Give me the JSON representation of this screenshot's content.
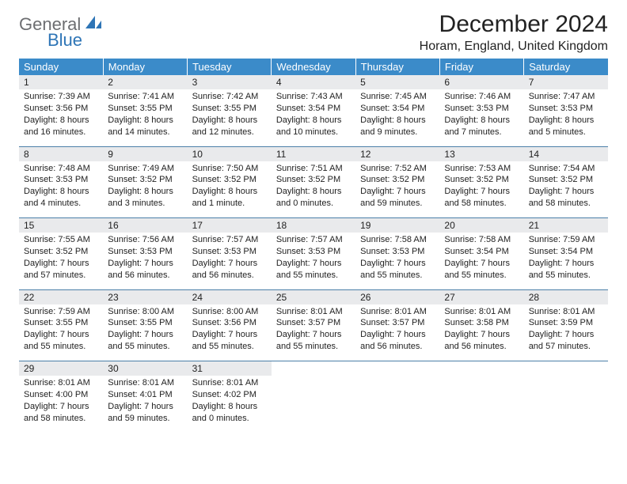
{
  "logo": {
    "word1": "General",
    "word2": "Blue",
    "sail_color": "#2e75b6",
    "word1_color": "#6d6e71"
  },
  "title": "December 2024",
  "location": "Horam, England, United Kingdom",
  "header_bg": "#3b8bc9",
  "daynum_bg": "#e9eaec",
  "rule_color": "#4b7fa8",
  "weekdays": [
    "Sunday",
    "Monday",
    "Tuesday",
    "Wednesday",
    "Thursday",
    "Friday",
    "Saturday"
  ],
  "weeks": [
    {
      "days": [
        {
          "n": "1",
          "sunrise": "7:39 AM",
          "sunset": "3:56 PM",
          "daylight": "8 hours and 16 minutes."
        },
        {
          "n": "2",
          "sunrise": "7:41 AM",
          "sunset": "3:55 PM",
          "daylight": "8 hours and 14 minutes."
        },
        {
          "n": "3",
          "sunrise": "7:42 AM",
          "sunset": "3:55 PM",
          "daylight": "8 hours and 12 minutes."
        },
        {
          "n": "4",
          "sunrise": "7:43 AM",
          "sunset": "3:54 PM",
          "daylight": "8 hours and 10 minutes."
        },
        {
          "n": "5",
          "sunrise": "7:45 AM",
          "sunset": "3:54 PM",
          "daylight": "8 hours and 9 minutes."
        },
        {
          "n": "6",
          "sunrise": "7:46 AM",
          "sunset": "3:53 PM",
          "daylight": "8 hours and 7 minutes."
        },
        {
          "n": "7",
          "sunrise": "7:47 AM",
          "sunset": "3:53 PM",
          "daylight": "8 hours and 5 minutes."
        }
      ]
    },
    {
      "days": [
        {
          "n": "8",
          "sunrise": "7:48 AM",
          "sunset": "3:53 PM",
          "daylight": "8 hours and 4 minutes."
        },
        {
          "n": "9",
          "sunrise": "7:49 AM",
          "sunset": "3:52 PM",
          "daylight": "8 hours and 3 minutes."
        },
        {
          "n": "10",
          "sunrise": "7:50 AM",
          "sunset": "3:52 PM",
          "daylight": "8 hours and 1 minute."
        },
        {
          "n": "11",
          "sunrise": "7:51 AM",
          "sunset": "3:52 PM",
          "daylight": "8 hours and 0 minutes."
        },
        {
          "n": "12",
          "sunrise": "7:52 AM",
          "sunset": "3:52 PM",
          "daylight": "7 hours and 59 minutes."
        },
        {
          "n": "13",
          "sunrise": "7:53 AM",
          "sunset": "3:52 PM",
          "daylight": "7 hours and 58 minutes."
        },
        {
          "n": "14",
          "sunrise": "7:54 AM",
          "sunset": "3:52 PM",
          "daylight": "7 hours and 58 minutes."
        }
      ]
    },
    {
      "days": [
        {
          "n": "15",
          "sunrise": "7:55 AM",
          "sunset": "3:52 PM",
          "daylight": "7 hours and 57 minutes."
        },
        {
          "n": "16",
          "sunrise": "7:56 AM",
          "sunset": "3:53 PM",
          "daylight": "7 hours and 56 minutes."
        },
        {
          "n": "17",
          "sunrise": "7:57 AM",
          "sunset": "3:53 PM",
          "daylight": "7 hours and 56 minutes."
        },
        {
          "n": "18",
          "sunrise": "7:57 AM",
          "sunset": "3:53 PM",
          "daylight": "7 hours and 55 minutes."
        },
        {
          "n": "19",
          "sunrise": "7:58 AM",
          "sunset": "3:53 PM",
          "daylight": "7 hours and 55 minutes."
        },
        {
          "n": "20",
          "sunrise": "7:58 AM",
          "sunset": "3:54 PM",
          "daylight": "7 hours and 55 minutes."
        },
        {
          "n": "21",
          "sunrise": "7:59 AM",
          "sunset": "3:54 PM",
          "daylight": "7 hours and 55 minutes."
        }
      ]
    },
    {
      "days": [
        {
          "n": "22",
          "sunrise": "7:59 AM",
          "sunset": "3:55 PM",
          "daylight": "7 hours and 55 minutes."
        },
        {
          "n": "23",
          "sunrise": "8:00 AM",
          "sunset": "3:55 PM",
          "daylight": "7 hours and 55 minutes."
        },
        {
          "n": "24",
          "sunrise": "8:00 AM",
          "sunset": "3:56 PM",
          "daylight": "7 hours and 55 minutes."
        },
        {
          "n": "25",
          "sunrise": "8:01 AM",
          "sunset": "3:57 PM",
          "daylight": "7 hours and 55 minutes."
        },
        {
          "n": "26",
          "sunrise": "8:01 AM",
          "sunset": "3:57 PM",
          "daylight": "7 hours and 56 minutes."
        },
        {
          "n": "27",
          "sunrise": "8:01 AM",
          "sunset": "3:58 PM",
          "daylight": "7 hours and 56 minutes."
        },
        {
          "n": "28",
          "sunrise": "8:01 AM",
          "sunset": "3:59 PM",
          "daylight": "7 hours and 57 minutes."
        }
      ]
    },
    {
      "days": [
        {
          "n": "29",
          "sunrise": "8:01 AM",
          "sunset": "4:00 PM",
          "daylight": "7 hours and 58 minutes."
        },
        {
          "n": "30",
          "sunrise": "8:01 AM",
          "sunset": "4:01 PM",
          "daylight": "7 hours and 59 minutes."
        },
        {
          "n": "31",
          "sunrise": "8:01 AM",
          "sunset": "4:02 PM",
          "daylight": "8 hours and 0 minutes."
        },
        null,
        null,
        null,
        null
      ]
    }
  ],
  "labels": {
    "sunrise": "Sunrise:",
    "sunset": "Sunset:",
    "daylight": "Daylight:"
  }
}
